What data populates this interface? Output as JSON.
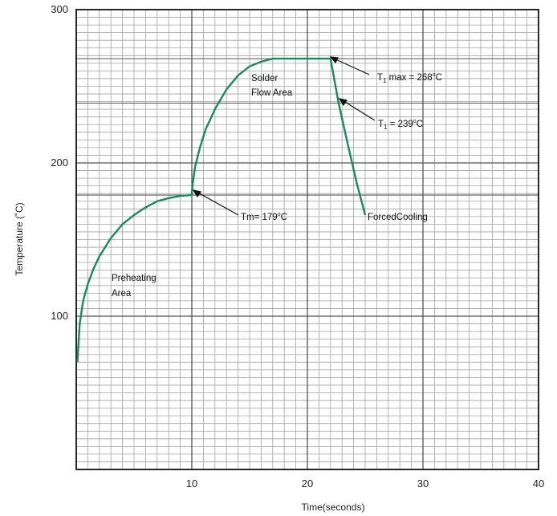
{
  "chart_data": {
    "type": "line",
    "title": "",
    "xlabel": "Time(seconds)",
    "ylabel": "Temperature (˚C)",
    "xlim": [
      0,
      40
    ],
    "ylim": [
      0,
      300
    ],
    "x_ticks": [
      "10",
      "20",
      "30",
      "40"
    ],
    "y_ticks": [
      "100",
      "200",
      "300"
    ],
    "grid": true,
    "series_color": "#1a8a5c",
    "series": [
      {
        "x": [
          0.1,
          0.3,
          0.6,
          1,
          1.5,
          2,
          3,
          4,
          5,
          6,
          7,
          8,
          9,
          10,
          10.05,
          10.3,
          10.7,
          11.2,
          12,
          13,
          14,
          15,
          16,
          17,
          18,
          19,
          20,
          21,
          22,
          22.7,
          23.5,
          24.3,
          25
        ],
        "y": [
          70,
          95,
          110,
          121,
          131,
          139,
          151,
          160,
          166,
          171,
          175,
          177,
          178.5,
          179,
          185,
          198,
          210,
          222,
          235,
          248,
          257,
          263,
          266,
          268,
          268,
          268,
          268,
          268,
          268,
          239,
          212,
          186,
          166
        ]
      }
    ],
    "annotations": {
      "solder": {
        "line1": "Solder",
        "line2": "Flow Area"
      },
      "tmax": {
        "prefix": "T",
        "sub": "1",
        "main": " max = 268",
        "deg": "o",
        "unit": "C"
      },
      "t1": {
        "prefix": "T",
        "sub": "1",
        "main": " = 239",
        "deg": "o",
        "unit": "C"
      },
      "tm": {
        "main": "Tm= 179",
        "deg": "o",
        "unit": "C"
      },
      "forced": "ForcedCooling",
      "preheat": {
        "line1": "Preheating",
        "line2": "Area"
      }
    }
  }
}
